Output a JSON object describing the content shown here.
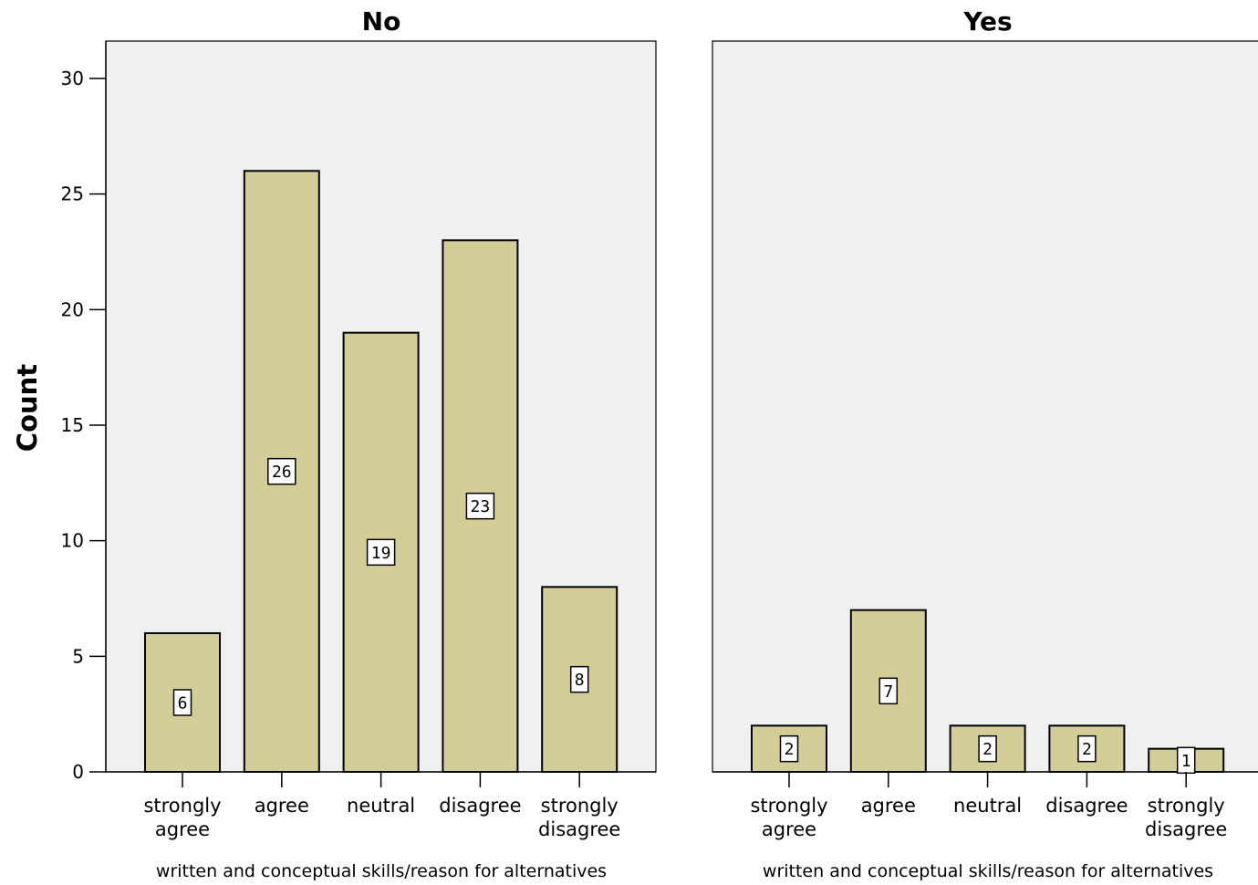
{
  "chart_data": {
    "type": "bar",
    "ylabel": "Count",
    "ylim": [
      0,
      30
    ],
    "yticks": [
      0,
      5,
      10,
      15,
      20,
      25,
      30
    ],
    "grid": false,
    "categories": [
      "strongly agree",
      "agree",
      "neutral",
      "disagree",
      "strongly disagree"
    ],
    "category_labels": [
      [
        "strongly",
        "agree"
      ],
      [
        "agree"
      ],
      [
        "neutral"
      ],
      [
        "disagree"
      ],
      [
        "strongly",
        "disagree"
      ]
    ],
    "panels": [
      {
        "title": "No",
        "xlabel": "written and conceptual skills/reason for alternatives",
        "values": [
          6,
          26,
          19,
          23,
          8
        ]
      },
      {
        "title": "Yes",
        "xlabel": "written and conceptual skills/reason for alternatives",
        "values": [
          2,
          7,
          2,
          2,
          1
        ]
      }
    ],
    "bar_color": "#d3ce98",
    "panel_background": "#f0f0f0"
  }
}
